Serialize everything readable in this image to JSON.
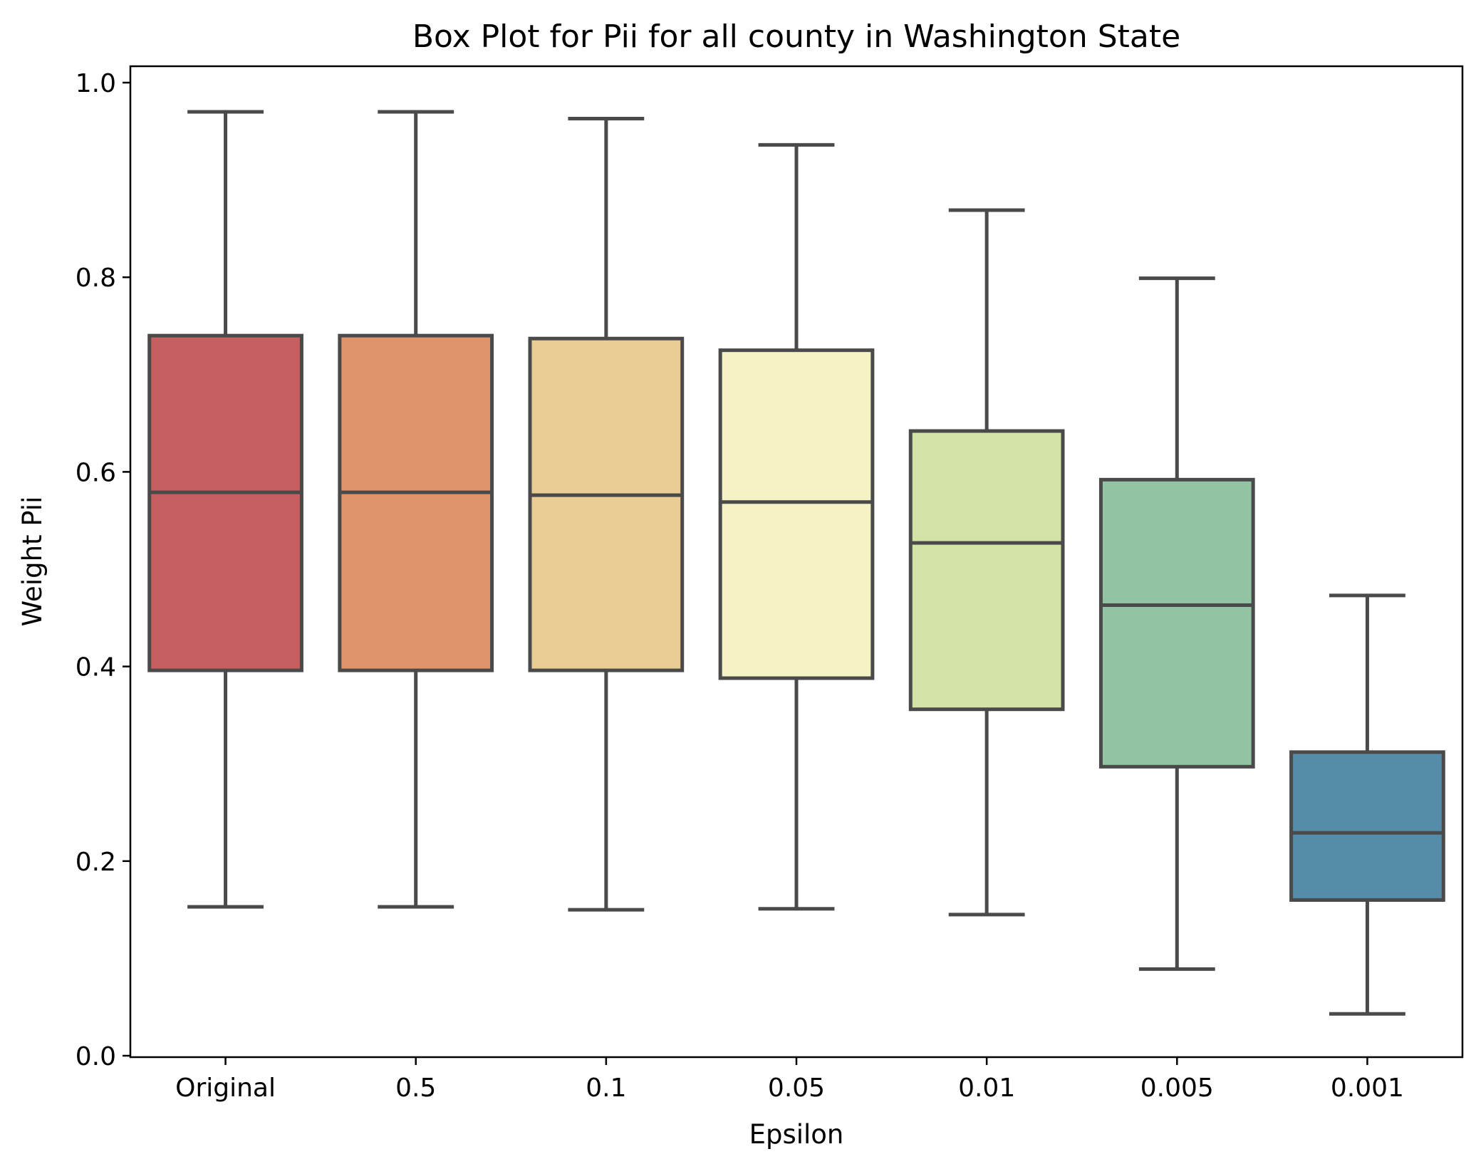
{
  "chart_data": {
    "type": "box",
    "title": "Box Plot for Pii for all county in Washington State",
    "xlabel": "Epsilon",
    "ylabel": "Weight Pii",
    "ylim": [
      0.0,
      1.02
    ],
    "yticks": [
      0.0,
      0.2,
      0.4,
      0.6,
      0.8,
      1.0
    ],
    "ytick_labels": [
      "0.0",
      "0.2",
      "0.4",
      "0.6",
      "0.8",
      "1.0"
    ],
    "grid": false,
    "legend": "none",
    "categories": [
      "Original",
      "0.5",
      "0.1",
      "0.05",
      "0.01",
      "0.005",
      "0.001"
    ],
    "boxes": [
      {
        "category": "Original",
        "whisker_low": 0.153,
        "q1": 0.396,
        "median": 0.579,
        "q3": 0.74,
        "whisker_high": 0.97,
        "color": "#c65f5f"
      },
      {
        "category": "0.5",
        "whisker_low": 0.153,
        "q1": 0.396,
        "median": 0.579,
        "q3": 0.74,
        "whisker_high": 0.97,
        "color": "#e0946b"
      },
      {
        "category": "0.1",
        "whisker_low": 0.15,
        "q1": 0.396,
        "median": 0.576,
        "q3": 0.737,
        "whisker_high": 0.963,
        "color": "#eacd94"
      },
      {
        "category": "0.05",
        "whisker_low": 0.151,
        "q1": 0.388,
        "median": 0.569,
        "q3": 0.725,
        "whisker_high": 0.936,
        "color": "#f5f3c5"
      },
      {
        "category": "0.01",
        "whisker_low": 0.145,
        "q1": 0.356,
        "median": 0.527,
        "q3": 0.642,
        "whisker_high": 0.869,
        "color": "#d2e3a5"
      },
      {
        "category": "0.005",
        "whisker_low": 0.089,
        "q1": 0.297,
        "median": 0.463,
        "q3": 0.592,
        "whisker_high": 0.799,
        "color": "#92c3a3"
      },
      {
        "category": "0.001",
        "whisker_low": 0.043,
        "q1": 0.16,
        "median": 0.229,
        "q3": 0.312,
        "whisker_high": 0.473,
        "color": "#548ca9"
      }
    ]
  }
}
